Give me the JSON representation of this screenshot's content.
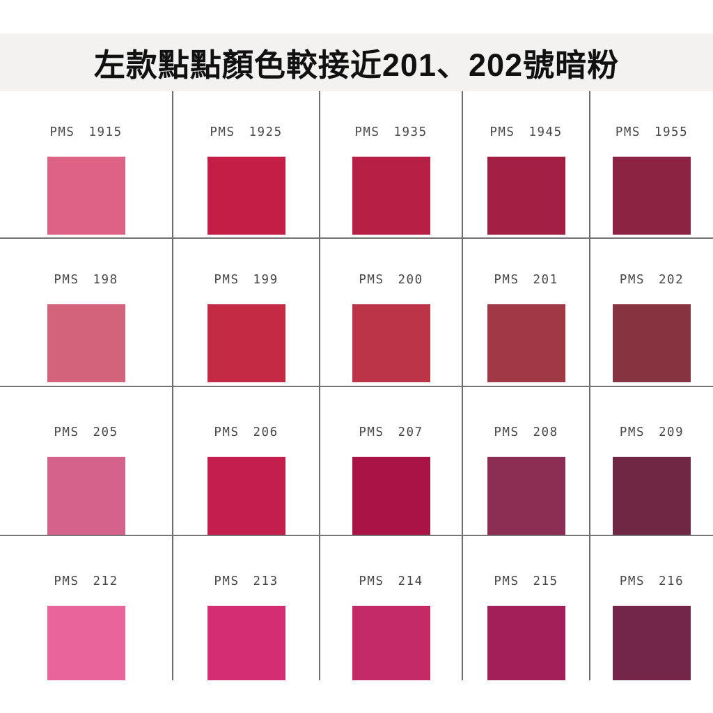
{
  "title": "左款點點顏色較接近201、202號暗粉",
  "colors": {
    "background": "#FFFFFF",
    "header_band": "#F3F2F1",
    "title_text": "#111111",
    "label_text": "#484848",
    "grid_line": "#6D6D6D"
  },
  "grid": {
    "rows": [
      {
        "cells": [
          {
            "prefix": "PMS",
            "code": "1915",
            "color": "#DC6386"
          },
          {
            "prefix": "PMS",
            "code": "1925",
            "color": "#C41E46"
          },
          {
            "prefix": "PMS",
            "code": "1935",
            "color": "#B81F45"
          },
          {
            "prefix": "PMS",
            "code": "1945",
            "color": "#A32044"
          },
          {
            "prefix": "PMS",
            "code": "1955",
            "color": "#8C2342"
          }
        ]
      },
      {
        "cells": [
          {
            "prefix": "PMS",
            "code": "198",
            "color": "#D3627B"
          },
          {
            "prefix": "PMS",
            "code": "199",
            "color": "#C52A45"
          },
          {
            "prefix": "PMS",
            "code": "200",
            "color": "#BC3448"
          },
          {
            "prefix": "PMS",
            "code": "201",
            "color": "#A03845"
          },
          {
            "prefix": "PMS",
            "code": "202",
            "color": "#863540"
          }
        ]
      },
      {
        "cells": [
          {
            "prefix": "PMS",
            "code": "205",
            "color": "#D5628B"
          },
          {
            "prefix": "PMS",
            "code": "206",
            "color": "#C41E4C"
          },
          {
            "prefix": "PMS",
            "code": "207",
            "color": "#A91345"
          },
          {
            "prefix": "PMS",
            "code": "208",
            "color": "#8C2E53"
          },
          {
            "prefix": "PMS",
            "code": "209",
            "color": "#6F2744"
          }
        ]
      },
      {
        "cells": [
          {
            "prefix": "PMS",
            "code": "212",
            "color": "#E9649A"
          },
          {
            "prefix": "PMS",
            "code": "213",
            "color": "#D52D73"
          },
          {
            "prefix": "PMS",
            "code": "214",
            "color": "#C42A65"
          },
          {
            "prefix": "PMS",
            "code": "215",
            "color": "#A31F59"
          },
          {
            "prefix": "PMS",
            "code": "216",
            "color": "#732647"
          }
        ]
      }
    ]
  },
  "chart_data": {
    "type": "table",
    "title": "左款點點顏色較接近201、202號暗粉",
    "columns": [
      "PMS code",
      "swatch color (hex, estimated)"
    ],
    "rows": [
      [
        "PMS 1915",
        "#DC6386"
      ],
      [
        "PMS 1925",
        "#C41E46"
      ],
      [
        "PMS 1935",
        "#B81F45"
      ],
      [
        "PMS 1945",
        "#A32044"
      ],
      [
        "PMS 1955",
        "#8C2342"
      ],
      [
        "PMS 198",
        "#D3627B"
      ],
      [
        "PMS 199",
        "#C52A45"
      ],
      [
        "PMS 200",
        "#BC3448"
      ],
      [
        "PMS 201",
        "#A03845"
      ],
      [
        "PMS 202",
        "#863540"
      ],
      [
        "PMS 205",
        "#D5628B"
      ],
      [
        "PMS 206",
        "#C41E4C"
      ],
      [
        "PMS 207",
        "#A91345"
      ],
      [
        "PMS 208",
        "#8C2E53"
      ],
      [
        "PMS 209",
        "#6F2744"
      ],
      [
        "PMS 212",
        "#E9649A"
      ],
      [
        "PMS 213",
        "#D52D73"
      ],
      [
        "PMS 214",
        "#C42A65"
      ],
      [
        "PMS 215",
        "#A31F59"
      ],
      [
        "PMS 216",
        "#732647"
      ]
    ],
    "layout": "4 rows x 5 columns grid of color swatches, labels above each swatch, thin gray grid dividers"
  }
}
